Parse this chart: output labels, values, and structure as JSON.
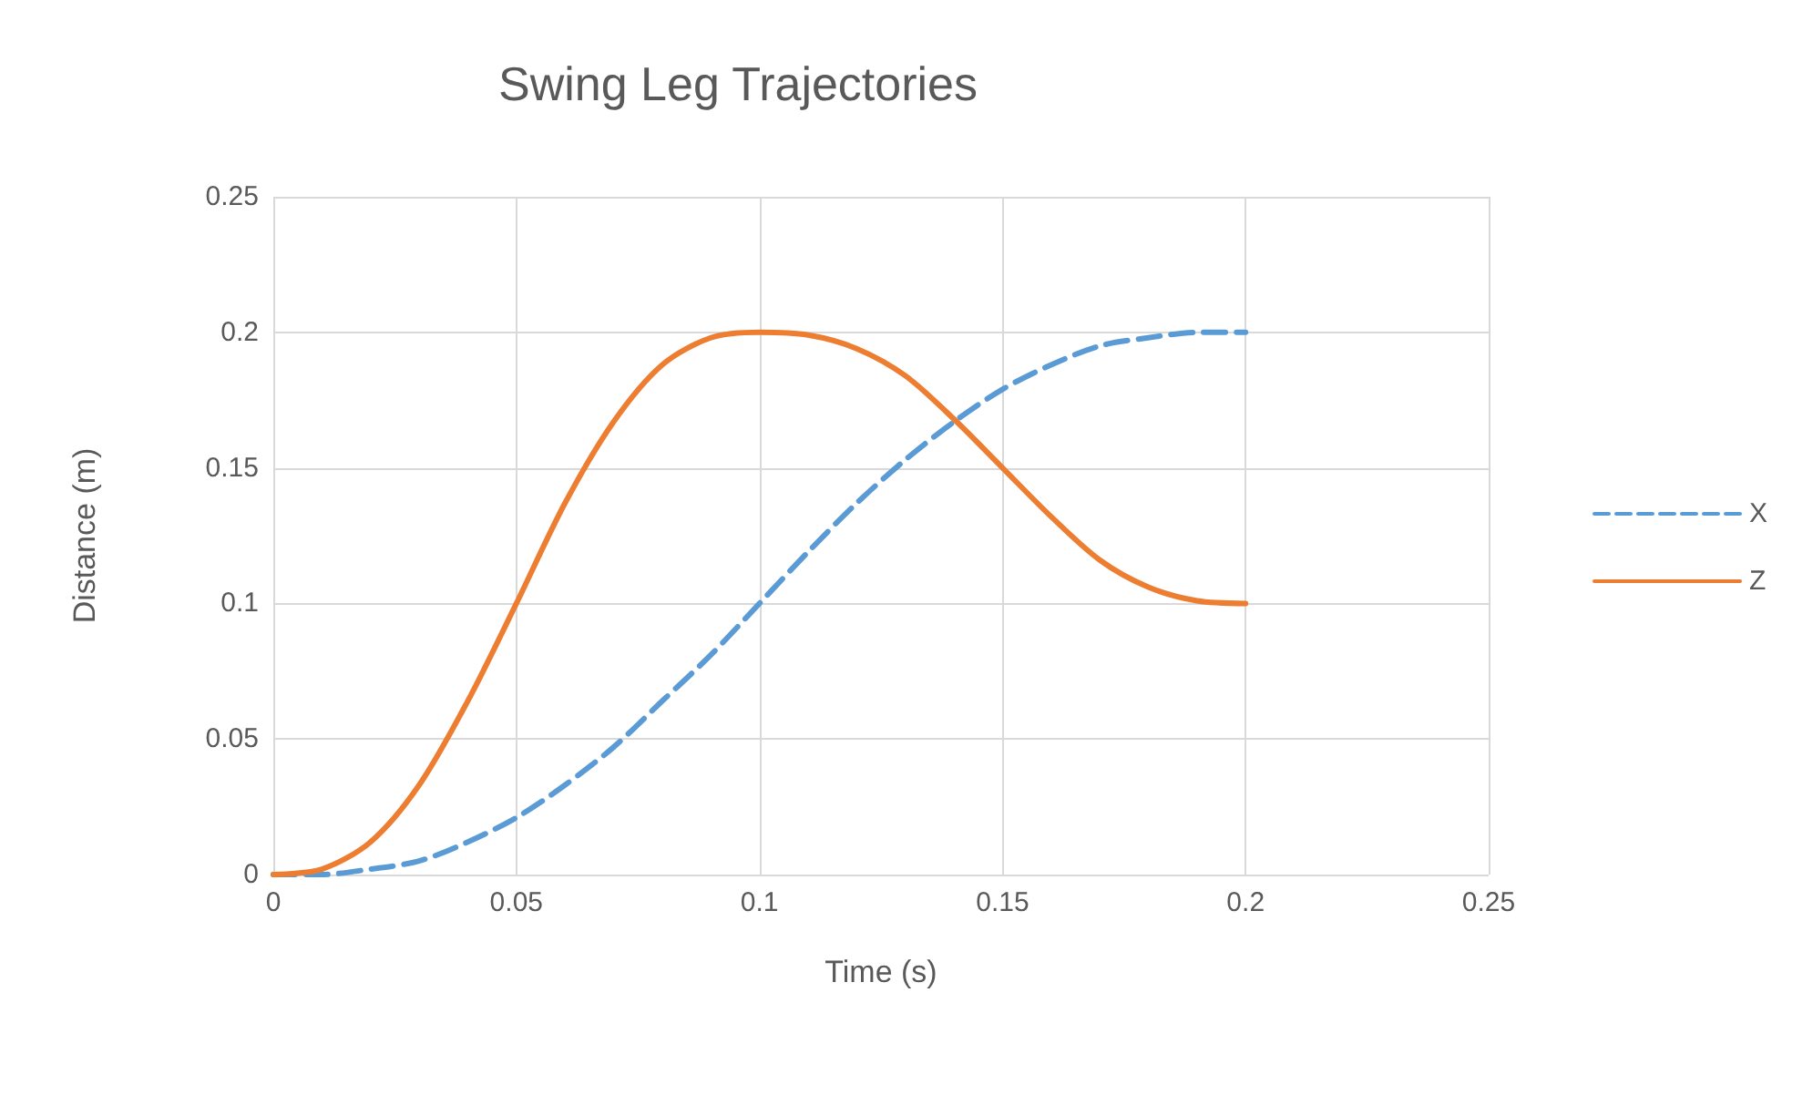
{
  "chart_data": {
    "type": "line",
    "title": "Swing Leg Trajectories",
    "xlabel": "Time (s)",
    "ylabel": "Distance (m)",
    "x": [
      0,
      0.01,
      0.02,
      0.03,
      0.04,
      0.05,
      0.06,
      0.07,
      0.08,
      0.09,
      0.1,
      0.11,
      0.12,
      0.13,
      0.14,
      0.15,
      0.16,
      0.17,
      0.18,
      0.19,
      0.2
    ],
    "series": [
      {
        "name": "X",
        "color": "#5b9bd5",
        "line_style": "dashed",
        "values": [
          0,
          0,
          0.002,
          0.005,
          0.012,
          0.021,
          0.033,
          0.047,
          0.064,
          0.081,
          0.1,
          0.119,
          0.137,
          0.153,
          0.167,
          0.179,
          0.188,
          0.195,
          0.198,
          0.2,
          0.2
        ]
      },
      {
        "name": "Z",
        "color": "#ed7d31",
        "line_style": "solid",
        "values": [
          0,
          0.002,
          0.012,
          0.033,
          0.064,
          0.1,
          0.137,
          0.167,
          0.188,
          0.198,
          0.2,
          0.199,
          0.194,
          0.184,
          0.168,
          0.15,
          0.132,
          0.116,
          0.106,
          0.101,
          0.1
        ]
      }
    ],
    "xlim": [
      0,
      0.25
    ],
    "xticks": [
      0,
      0.05,
      0.1,
      0.15,
      0.2,
      0.25
    ],
    "ylim": [
      0,
      0.25
    ],
    "yticks": [
      0,
      0.05,
      0.1,
      0.15,
      0.2,
      0.25
    ],
    "grid": true,
    "legend": "right",
    "marker": "none"
  }
}
